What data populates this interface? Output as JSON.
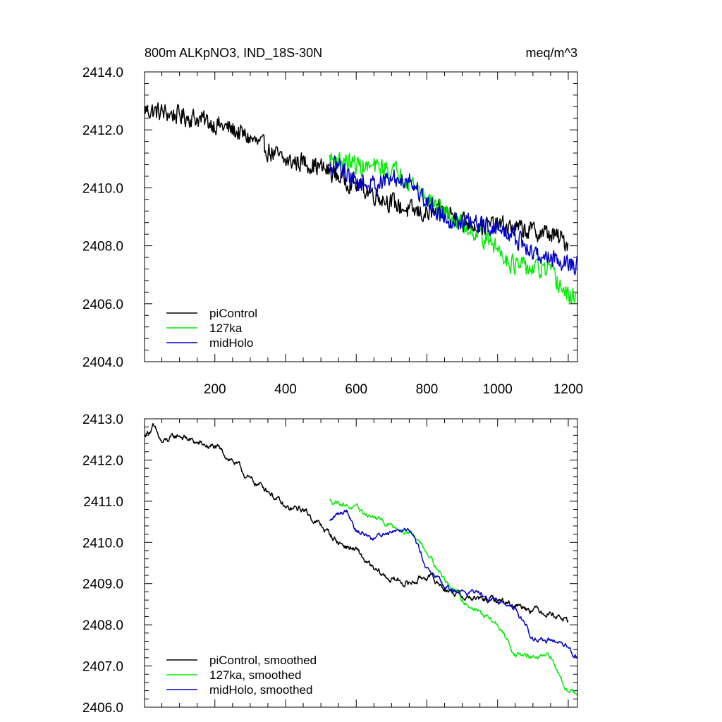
{
  "chart_data": [
    {
      "type": "line",
      "title": "800m ALKpNO3, IND_18S-30N",
      "units": "meq/m^3",
      "xlim": [
        1,
        1226
      ],
      "ylim": [
        2404.0,
        2414.0
      ],
      "xticks": [
        200,
        400,
        600,
        800,
        1000,
        1200
      ],
      "xtick_labels": [
        "200",
        "400",
        "600",
        "800",
        "1000",
        "1200"
      ],
      "yticks": [
        2404.0,
        2406.0,
        2408.0,
        2410.0,
        2412.0,
        2414.0
      ],
      "ytick_labels": [
        "2404.0",
        "2406.0",
        "2408.0",
        "2410.0",
        "2412.0",
        "2414.0"
      ],
      "legend_position": "bottom-left",
      "series": [
        {
          "name": "piControl",
          "color": "#000000",
          "x": [
            1,
            50,
            100,
            150,
            200,
            250,
            300,
            350,
            400,
            450,
            500,
            550,
            600,
            650,
            700,
            750,
            800,
            850,
            900,
            950,
            1000,
            1050,
            1100,
            1150,
            1200
          ],
          "y": [
            2412.7,
            2412.6,
            2412.5,
            2412.4,
            2412.2,
            2412.0,
            2411.7,
            2411.3,
            2410.9,
            2410.9,
            2410.7,
            2410.4,
            2410.1,
            2409.8,
            2409.5,
            2409.2,
            2409.1,
            2409.2,
            2408.9,
            2408.7,
            2408.7,
            2408.6,
            2408.5,
            2408.4,
            2408.1
          ],
          "noise": 0.38
        },
        {
          "name": "127ka",
          "color": "#00ee00",
          "x": [
            525,
            575,
            625,
            675,
            725,
            775,
            800,
            850,
            900,
            950,
            1000,
            1050,
            1100,
            1150,
            1200,
            1226
          ],
          "y": [
            2411.0,
            2410.9,
            2410.7,
            2410.7,
            2410.5,
            2410.0,
            2409.7,
            2409.1,
            2408.7,
            2408.4,
            2407.9,
            2407.3,
            2407.2,
            2407.1,
            2406.2,
            2406.4
          ],
          "noise": 0.38
        },
        {
          "name": "midHolo",
          "color": "#0000cc",
          "x": [
            525,
            550,
            600,
            650,
            700,
            750,
            800,
            850,
            900,
            950,
            1000,
            1050,
            1100,
            1150,
            1200,
            1226
          ],
          "y": [
            2410.6,
            2410.8,
            2410.2,
            2410.1,
            2410.3,
            2410.3,
            2409.5,
            2409.0,
            2408.8,
            2408.7,
            2408.6,
            2408.3,
            2407.7,
            2407.6,
            2407.4,
            2407.3
          ],
          "noise": 0.38
        }
      ]
    },
    {
      "type": "line",
      "xlim": [
        1,
        1226
      ],
      "ylim": [
        2406.0,
        2413.0
      ],
      "xticks": [
        200,
        400,
        600,
        800,
        1000,
        1200
      ],
      "yticks": [
        2406.0,
        2407.0,
        2408.0,
        2409.0,
        2410.0,
        2411.0,
        2412.0,
        2413.0
      ],
      "ytick_labels": [
        "2406.0",
        "2407.0",
        "2408.0",
        "2409.0",
        "2410.0",
        "2411.0",
        "2412.0",
        "2413.0"
      ],
      "legend_position": "bottom-left",
      "series": [
        {
          "name": "piControl, smoothed",
          "color": "#000000",
          "x": [
            1,
            25,
            50,
            100,
            150,
            200,
            250,
            300,
            350,
            400,
            450,
            500,
            550,
            600,
            650,
            700,
            750,
            800,
            850,
            900,
            950,
            1000,
            1050,
            1100,
            1150,
            1200
          ],
          "y": [
            2412.6,
            2412.8,
            2412.4,
            2412.6,
            2412.4,
            2412.3,
            2412.0,
            2411.5,
            2411.3,
            2410.8,
            2410.8,
            2410.4,
            2410.0,
            2409.8,
            2409.3,
            2409.1,
            2409.0,
            2409.2,
            2408.9,
            2408.7,
            2408.6,
            2408.6,
            2408.5,
            2408.4,
            2408.3,
            2408.1
          ],
          "noise": 0.2
        },
        {
          "name": "127ka, smoothed",
          "color": "#00ee00",
          "x": [
            525,
            550,
            600,
            650,
            700,
            750,
            800,
            850,
            900,
            950,
            1000,
            1050,
            1100,
            1150,
            1200,
            1226
          ],
          "y": [
            2411.0,
            2411.0,
            2410.8,
            2410.6,
            2410.4,
            2410.3,
            2409.8,
            2409.1,
            2408.6,
            2408.3,
            2408.0,
            2407.3,
            2407.2,
            2407.2,
            2406.4,
            2406.4
          ],
          "noise": 0.16
        },
        {
          "name": "midHolo, smoothed",
          "color": "#0000cc",
          "x": [
            525,
            550,
            575,
            600,
            650,
            700,
            750,
            800,
            850,
            900,
            950,
            1000,
            1050,
            1100,
            1150,
            1200,
            1226
          ],
          "y": [
            2410.5,
            2410.7,
            2410.8,
            2410.3,
            2410.1,
            2410.3,
            2410.4,
            2409.4,
            2408.9,
            2408.8,
            2408.8,
            2408.6,
            2408.4,
            2407.7,
            2407.6,
            2407.4,
            2407.2
          ],
          "noise": 0.16
        }
      ]
    }
  ]
}
